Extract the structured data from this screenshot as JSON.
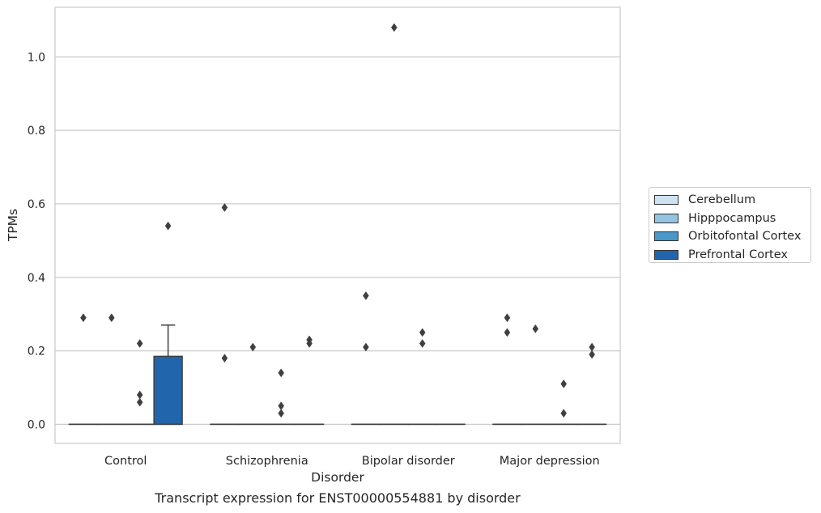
{
  "figure": {
    "caption": "Transcript expression for ENST00000554881 by disorder"
  },
  "chart_data": {
    "type": "box",
    "xlabel": "Disorder",
    "ylabel": "TPMs",
    "categories": [
      "Control",
      "Schizophrenia",
      "Bipolar disorder",
      "Major depression"
    ],
    "yticks": [
      "0.0",
      "0.2",
      "0.4",
      "0.6",
      "0.8",
      "1.0"
    ],
    "ylim": [
      -0.052,
      1.135
    ],
    "grid": "horizontal",
    "legend_position": "right",
    "series": [
      {
        "name": "Cerebellum",
        "color": "#d0e1f2",
        "boxes": [
          {
            "q1": 0,
            "median": 0,
            "q3": 0,
            "whisker_low": 0,
            "whisker_high": 0,
            "outliers": [
              0.29
            ]
          },
          {
            "q1": 0,
            "median": 0,
            "q3": 0,
            "whisker_low": 0,
            "whisker_high": 0,
            "outliers": [
              0.59,
              0.18
            ]
          },
          {
            "q1": 0,
            "median": 0,
            "q3": 0,
            "whisker_low": 0,
            "whisker_high": 0,
            "outliers": [
              0.35,
              0.21
            ]
          },
          {
            "q1": 0,
            "median": 0,
            "q3": 0,
            "whisker_low": 0,
            "whisker_high": 0,
            "outliers": [
              0.29,
              0.25
            ]
          }
        ]
      },
      {
        "name": "Hipppocampus",
        "color": "#94c4df",
        "boxes": [
          {
            "q1": 0,
            "median": 0,
            "q3": 0,
            "whisker_low": 0,
            "whisker_high": 0,
            "outliers": [
              0.29
            ]
          },
          {
            "q1": 0,
            "median": 0,
            "q3": 0,
            "whisker_low": 0,
            "whisker_high": 0,
            "outliers": [
              0.21
            ]
          },
          {
            "q1": 0,
            "median": 0,
            "q3": 0,
            "whisker_low": 0,
            "whisker_high": 0,
            "outliers": [
              1.08
            ]
          },
          {
            "q1": 0,
            "median": 0,
            "q3": 0,
            "whisker_low": 0,
            "whisker_high": 0,
            "outliers": [
              0.26
            ]
          }
        ]
      },
      {
        "name": "Orbitofontal Cortex",
        "color": "#4a98c9",
        "boxes": [
          {
            "q1": 0,
            "median": 0,
            "q3": 0,
            "whisker_low": 0,
            "whisker_high": 0,
            "outliers": [
              0.22,
              0.08,
              0.06
            ]
          },
          {
            "q1": 0,
            "median": 0,
            "q3": 0,
            "whisker_low": 0,
            "whisker_high": 0,
            "outliers": [
              0.14,
              0.05,
              0.03
            ]
          },
          {
            "q1": 0,
            "median": 0,
            "q3": 0,
            "whisker_low": 0,
            "whisker_high": 0,
            "outliers": [
              0.25,
              0.22
            ]
          },
          {
            "q1": 0,
            "median": 0,
            "q3": 0,
            "whisker_low": 0,
            "whisker_high": 0,
            "outliers": [
              0.11,
              0.03
            ]
          }
        ]
      },
      {
        "name": "Prefrontal Cortex",
        "color": "#2166ac",
        "boxes": [
          {
            "q1": 0,
            "median": 0,
            "q3": 0.185,
            "whisker_low": 0,
            "whisker_high": 0.27,
            "outliers": [
              0.54
            ]
          },
          {
            "q1": 0,
            "median": 0,
            "q3": 0,
            "whisker_low": 0,
            "whisker_high": 0,
            "outliers": [
              0.23,
              0.22
            ]
          },
          {
            "q1": 0,
            "median": 0,
            "q3": 0,
            "whisker_low": 0,
            "whisker_high": 0,
            "outliers": []
          },
          {
            "q1": 0,
            "median": 0,
            "q3": 0,
            "whisker_low": 0,
            "whisker_high": 0,
            "outliers": [
              0.21,
              0.19
            ]
          }
        ]
      }
    ]
  }
}
